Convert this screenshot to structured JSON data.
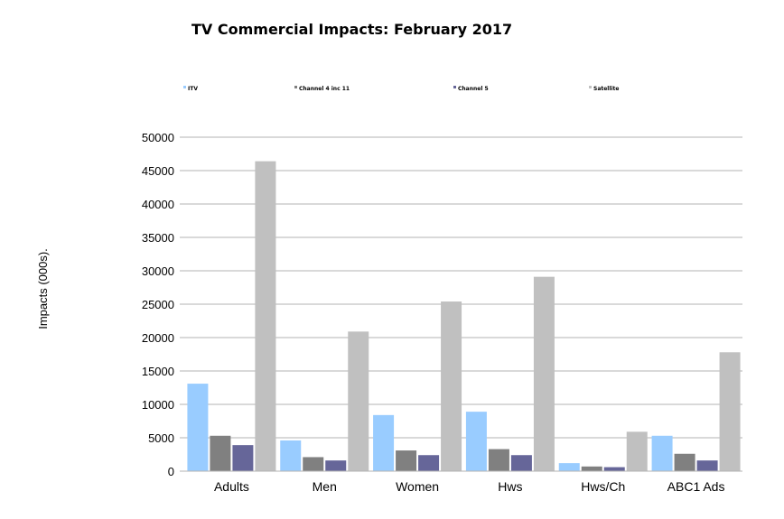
{
  "chart_data": {
    "type": "bar",
    "title": "TV Commercial Impacts: February 2017",
    "ylabel": "Impacts (000s).",
    "xlabel": "",
    "ylim": [
      0,
      50000
    ],
    "yticks": [
      "0",
      "5000",
      "10000",
      "15000",
      "20000",
      "25000",
      "30000",
      "35000",
      "40000",
      "45000",
      "50000"
    ],
    "grid": true,
    "legend_position": "top",
    "categories": [
      "Adults",
      "Men",
      "Women",
      "Hws",
      "Hws/Ch",
      "ABC1 Ads"
    ],
    "series": [
      {
        "name": "ITV",
        "color": "#99ccff",
        "values": [
          13100,
          4600,
          8400,
          8900,
          1200,
          5300
        ]
      },
      {
        "name": "Channel 4 inc 11",
        "color": "#808080",
        "values": [
          5300,
          2100,
          3100,
          3300,
          700,
          2600
        ]
      },
      {
        "name": "Channel 5",
        "color": "#666699",
        "values": [
          3900,
          1600,
          2400,
          2400,
          600,
          1600
        ]
      },
      {
        "name": "Satellite",
        "color": "#c0c0c0",
        "values": [
          46400,
          20900,
          25400,
          29100,
          5900,
          17800
        ]
      }
    ]
  }
}
